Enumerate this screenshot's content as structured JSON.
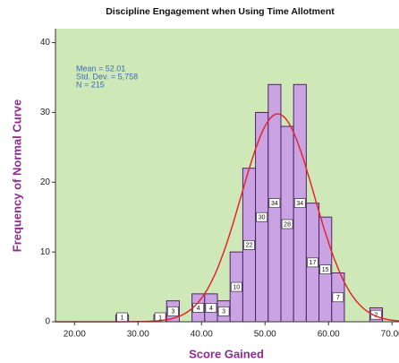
{
  "chart_data": {
    "type": "histogram",
    "title": "Discipline Engagement when Using Time Allotment",
    "x_label": "Score Gained",
    "y_label": "Frequency of Normal Curve",
    "bins": [
      26.5,
      28.5,
      30.5,
      32.5,
      34.5,
      36.5,
      38.5,
      40.5,
      42.5,
      44.5,
      46.5,
      48.5,
      50.5,
      52.5,
      54.5,
      56.5,
      58.5,
      60.5,
      62.5,
      64.5,
      66.5,
      68.5
    ],
    "values": [
      1,
      0,
      0,
      1,
      3,
      0,
      4,
      4,
      3,
      10,
      22,
      30,
      34,
      28,
      34,
      17,
      15,
      7,
      0,
      0,
      2
    ],
    "color": "#c9a3e2",
    "edge_color": "#4b2466",
    "background": "#cfe8b8",
    "stats_labels": [
      "Mean = 52.01",
      "Std. Dev. = 5,758",
      "N = 215"
    ],
    "normal_curve": {
      "mean": 52.01,
      "sd": 5.758,
      "n": 215,
      "color": "#e3262e"
    },
    "xlim": [
      17,
      71.1
    ],
    "ylim": [
      0,
      42
    ],
    "xticks": [
      {
        "value": 20,
        "label": "20.00"
      },
      {
        "value": 30,
        "label": "30.00"
      },
      {
        "value": 40,
        "label": "40.00"
      },
      {
        "value": 50,
        "label": "50.00"
      },
      {
        "value": 60,
        "label": "60.00"
      },
      {
        "value": 70,
        "label": "70.00"
      }
    ],
    "yticks": [
      0,
      10,
      20,
      30,
      40
    ]
  }
}
